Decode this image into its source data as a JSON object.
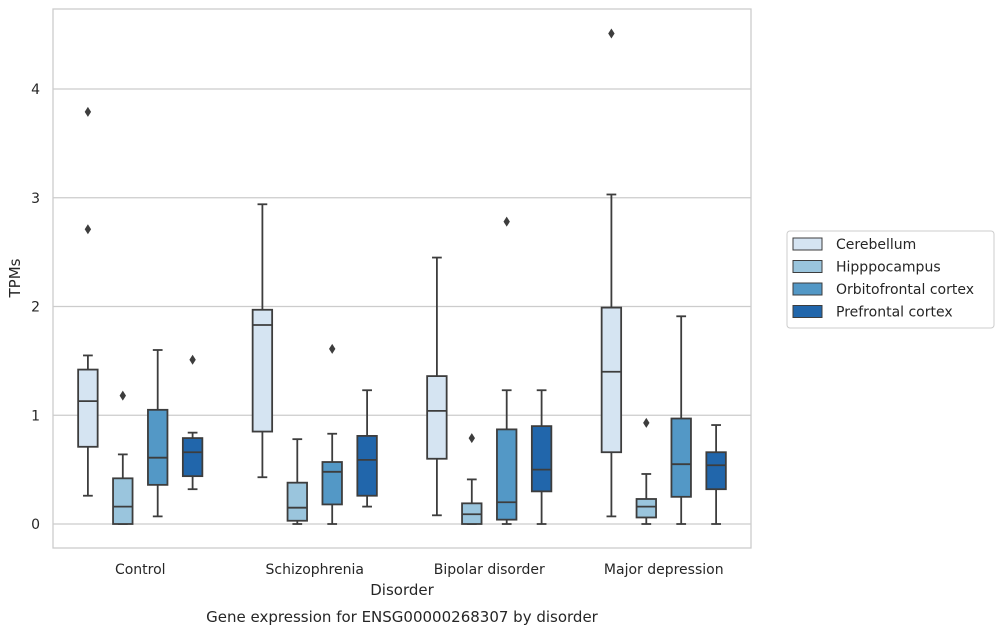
{
  "chart_data": {
    "type": "boxplot",
    "caption": "Gene expression for ENSG00000268307 by disorder",
    "xlabel": "Disorder",
    "ylabel": "TPMs",
    "ylim": [
      -0.22,
      4.75
    ],
    "yticks": [
      0,
      1,
      2,
      3,
      4
    ],
    "grid": "horizontal",
    "legend_position": "right",
    "categories": [
      "Control",
      "Schizophrenia",
      "Bipolar disorder",
      "Major depression"
    ],
    "series": [
      {
        "name": "Cerebellum",
        "color": "#d5e4f2",
        "boxes": [
          {
            "whislo": 0.26,
            "q1": 0.71,
            "med": 1.13,
            "q3": 1.42,
            "whishi": 1.55,
            "fliers": [
              2.71,
              3.79
            ]
          },
          {
            "whislo": 0.43,
            "q1": 0.85,
            "med": 1.83,
            "q3": 1.97,
            "whishi": 2.94,
            "fliers": []
          },
          {
            "whislo": 0.08,
            "q1": 0.6,
            "med": 1.04,
            "q3": 1.36,
            "whishi": 2.45,
            "fliers": []
          },
          {
            "whislo": 0.07,
            "q1": 0.66,
            "med": 1.4,
            "q3": 1.99,
            "whishi": 3.03,
            "fliers": [
              4.51
            ]
          }
        ]
      },
      {
        "name": "Hipppocampus",
        "color": "#9ac5dd",
        "boxes": [
          {
            "whislo": 0.0,
            "q1": 0.0,
            "med": 0.16,
            "q3": 0.42,
            "whishi": 0.64,
            "fliers": [
              1.18
            ]
          },
          {
            "whislo": 0.0,
            "q1": 0.03,
            "med": 0.15,
            "q3": 0.38,
            "whishi": 0.78,
            "fliers": []
          },
          {
            "whislo": 0.0,
            "q1": 0.0,
            "med": 0.09,
            "q3": 0.19,
            "whishi": 0.41,
            "fliers": [
              0.79
            ]
          },
          {
            "whislo": 0.0,
            "q1": 0.06,
            "med": 0.16,
            "q3": 0.23,
            "whishi": 0.46,
            "fliers": [
              0.93
            ]
          }
        ]
      },
      {
        "name": "Orbitofrontal cortex",
        "color": "#5398c6",
        "boxes": [
          {
            "whislo": 0.07,
            "q1": 0.36,
            "med": 0.61,
            "q3": 1.05,
            "whishi": 1.6,
            "fliers": []
          },
          {
            "whislo": 0.0,
            "q1": 0.18,
            "med": 0.48,
            "q3": 0.57,
            "whishi": 0.83,
            "fliers": [
              1.61
            ]
          },
          {
            "whislo": 0.0,
            "q1": 0.04,
            "med": 0.2,
            "q3": 0.87,
            "whishi": 1.23,
            "fliers": [
              2.78
            ]
          },
          {
            "whislo": 0.0,
            "q1": 0.25,
            "med": 0.55,
            "q3": 0.97,
            "whishi": 1.91,
            "fliers": []
          }
        ]
      },
      {
        "name": "Prefrontal cortex",
        "color": "#2166ab",
        "boxes": [
          {
            "whislo": 0.32,
            "q1": 0.44,
            "med": 0.66,
            "q3": 0.79,
            "whishi": 0.84,
            "fliers": [
              1.51
            ]
          },
          {
            "whislo": 0.16,
            "q1": 0.26,
            "med": 0.59,
            "q3": 0.81,
            "whishi": 1.23,
            "fliers": []
          },
          {
            "whislo": 0.0,
            "q1": 0.3,
            "med": 0.5,
            "q3": 0.9,
            "whishi": 1.23,
            "fliers": []
          },
          {
            "whislo": 0.0,
            "q1": 0.32,
            "med": 0.54,
            "q3": 0.66,
            "whishi": 0.91,
            "fliers": []
          }
        ]
      }
    ]
  }
}
